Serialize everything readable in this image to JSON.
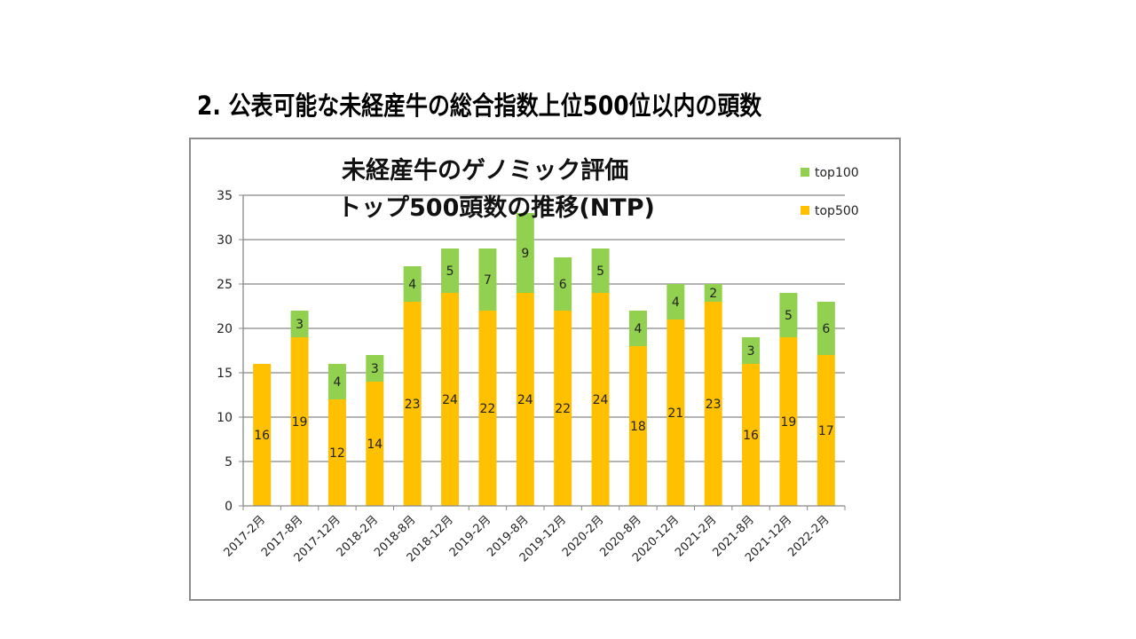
{
  "slide": {
    "title": "2. 公表可能な未経産牛の総合指数上位500位以内の頭数"
  },
  "chart_data": {
    "type": "bar",
    "stacked": true,
    "title_lines": [
      "未経産牛のゲノミック評価",
      "トップ500頭数の推移(NTP)"
    ],
    "categories": [
      "2017-2月",
      "2017-8月",
      "2017-12月",
      "2018-2月",
      "2018-8月",
      "2018-12月",
      "2019-2月",
      "2019-8月",
      "2019-12月",
      "2020-2月",
      "2020-8月",
      "2020-12月",
      "2021-2月",
      "2021-8月",
      "2021-12月",
      "2022-2月"
    ],
    "series": [
      {
        "name": "top500",
        "color": "#ffc000",
        "values": [
          16,
          19,
          12,
          14,
          23,
          24,
          22,
          24,
          22,
          24,
          18,
          21,
          23,
          16,
          19,
          17
        ]
      },
      {
        "name": "top100",
        "color": "#92d050",
        "values": [
          0,
          3,
          4,
          3,
          4,
          5,
          7,
          9,
          6,
          5,
          4,
          4,
          2,
          3,
          5,
          6
        ]
      }
    ],
    "data_labels_shown": {
      "top100_zero_hidden": true
    },
    "xlabel": "",
    "ylabel": "",
    "ylim": [
      0,
      35
    ],
    "yticks": [
      0,
      5,
      10,
      15,
      20,
      25,
      30,
      35
    ],
    "grid": true,
    "legend": {
      "position": "top-right",
      "order": [
        "top100",
        "top500"
      ]
    }
  }
}
